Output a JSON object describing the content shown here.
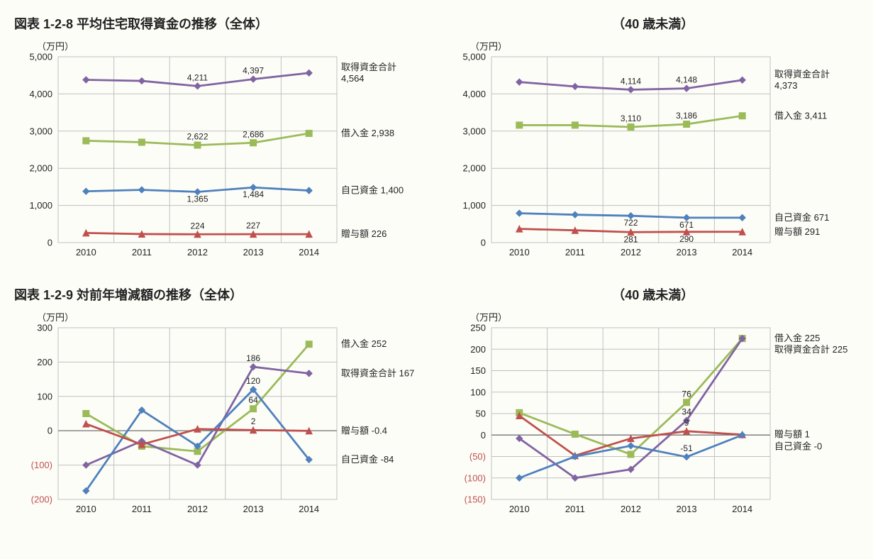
{
  "colors": {
    "purple": "#8064a2",
    "green": "#9bbb59",
    "blue": "#4f81bd",
    "red": "#c0504d",
    "grid": "#bfbfbf",
    "axis": "#808080",
    "bg": "#fdfdf8",
    "text": "#222222"
  },
  "line_width": 2.8,
  "marker_size": 4.5,
  "font": {
    "title_pt": 18,
    "axis_pt": 13,
    "tick_pt": 13,
    "label_pt": 13,
    "data_pt": 12
  },
  "chart_128_all": {
    "type": "line",
    "title": "図表 1-2-8  平均住宅取得資金の推移（全体）",
    "ylabel": "（万円）",
    "categories": [
      "2010",
      "2011",
      "2012",
      "2013",
      "2014"
    ],
    "ylim": [
      0,
      5000
    ],
    "ytick_step": 1000,
    "series": [
      {
        "key": "total",
        "name": "取得資金合計",
        "color": "#8064a2",
        "marker": "diamond",
        "values": [
          4380,
          4350,
          4211,
          4397,
          4564
        ],
        "dl": {
          "2": "4,211",
          "3": "4,397"
        },
        "end_label": "取得資金合計 4,564"
      },
      {
        "key": "loan",
        "name": "借入金",
        "color": "#9bbb59",
        "marker": "square",
        "values": [
          2740,
          2700,
          2622,
          2686,
          2938
        ],
        "dl": {
          "2": "2,622",
          "3": "2,686"
        },
        "end_label": "借入金 2,938"
      },
      {
        "key": "own",
        "name": "自己資金",
        "color": "#4f81bd",
        "marker": "diamond",
        "values": [
          1380,
          1420,
          1365,
          1484,
          1400
        ],
        "dl": {
          "2": "1,365",
          "3": "1,484"
        },
        "end_label": "自己資金 1,400"
      },
      {
        "key": "gift",
        "name": "贈与額",
        "color": "#c0504d",
        "marker": "triangle",
        "values": [
          260,
          230,
          224,
          227,
          226
        ],
        "dl": {
          "2": "224",
          "3": "227"
        },
        "end_label": "贈与額 226"
      }
    ]
  },
  "chart_128_u40": {
    "type": "line",
    "title": "（40 歳未満）",
    "ylabel": "（万円）",
    "categories": [
      "2010",
      "2011",
      "2012",
      "2013",
      "2014"
    ],
    "ylim": [
      0,
      5000
    ],
    "ytick_step": 1000,
    "series": [
      {
        "key": "total",
        "name": "取得資金合計",
        "color": "#8064a2",
        "marker": "diamond",
        "values": [
          4320,
          4200,
          4114,
          4148,
          4373
        ],
        "dl": {
          "2": "4,114",
          "3": "4,148"
        },
        "end_label": "取得資金合計 4,373"
      },
      {
        "key": "loan",
        "name": "借入金",
        "color": "#9bbb59",
        "marker": "square",
        "values": [
          3160,
          3160,
          3110,
          3186,
          3411
        ],
        "dl": {
          "2": "3,110",
          "3": "3,186"
        },
        "end_label": "借入金 3,411"
      },
      {
        "key": "own",
        "name": "自己資金",
        "color": "#4f81bd",
        "marker": "diamond",
        "values": [
          790,
          750,
          722,
          671,
          671
        ],
        "dl": {
          "2": "722",
          "3": "671"
        },
        "end_label": "自己資金 671"
      },
      {
        "key": "gift",
        "name": "贈与額",
        "color": "#c0504d",
        "marker": "triangle",
        "values": [
          370,
          330,
          281,
          290,
          291
        ],
        "dl": {
          "2": "281",
          "3": "290"
        },
        "end_label": "贈与額 291"
      }
    ]
  },
  "chart_129_all": {
    "type": "line",
    "title": "図表 1-2-9  対前年増減額の推移（全体）",
    "ylabel": "（万円）",
    "categories": [
      "2010",
      "2011",
      "2012",
      "2013",
      "2014"
    ],
    "ylim": [
      -200,
      300
    ],
    "ytick_step": 100,
    "yticks": [
      -200,
      -100,
      0,
      100,
      200,
      300
    ],
    "series": [
      {
        "key": "loan",
        "name": "借入金",
        "color": "#9bbb59",
        "marker": "square",
        "values": [
          50,
          -45,
          -60,
          64,
          252
        ],
        "dl": {
          "3": "64"
        },
        "end_label": "借入金 252"
      },
      {
        "key": "total",
        "name": "取得資金合計",
        "color": "#8064a2",
        "marker": "diamond",
        "values": [
          -100,
          -30,
          -100,
          186,
          167
        ],
        "dl": {
          "3": "186"
        },
        "end_label": "取得資金合計 167"
      },
      {
        "key": "own",
        "name": "自己資金",
        "color": "#4f81bd",
        "marker": "diamond",
        "values": [
          -175,
          60,
          -45,
          120,
          -84
        ],
        "dl": {
          "3": "120"
        },
        "end_label": "自己資金 -84",
        "label_color": "#c0504d"
      },
      {
        "key": "gift",
        "name": "贈与額",
        "color": "#c0504d",
        "marker": "triangle",
        "values": [
          20,
          -40,
          5,
          2,
          -0.4
        ],
        "dl": {
          "3": "2"
        },
        "end_label": "贈与額 -0.4",
        "label_color": "#c0504d"
      }
    ]
  },
  "chart_129_u40": {
    "type": "line",
    "title": "（40 歳未満）",
    "ylabel": "（万円）",
    "categories": [
      "2010",
      "2011",
      "2012",
      "2013",
      "2014"
    ],
    "ylim": [
      -150,
      250
    ],
    "ytick_step": 50,
    "yticks": [
      -150,
      -100,
      -50,
      0,
      50,
      100,
      150,
      200,
      250
    ],
    "series": [
      {
        "key": "loan",
        "name": "借入金",
        "color": "#9bbb59",
        "marker": "square",
        "values": [
          52,
          2,
          -45,
          76,
          225
        ],
        "dl": {
          "3": "76"
        },
        "end_label": "借入金 225"
      },
      {
        "key": "total",
        "name": "取得資金合計",
        "color": "#8064a2",
        "marker": "diamond",
        "values": [
          -8,
          -100,
          -80,
          34,
          225
        ],
        "dl": {
          "3": "34"
        },
        "end_label": "取得資金合計 225"
      },
      {
        "key": "gift",
        "name": "贈与額",
        "color": "#c0504d",
        "marker": "triangle",
        "values": [
          45,
          -48,
          -8,
          9,
          1
        ],
        "dl": {
          "3": "9"
        },
        "end_label": "贈与額 1"
      },
      {
        "key": "own",
        "name": "自己資金",
        "color": "#4f81bd",
        "marker": "diamond",
        "values": [
          -100,
          -50,
          -25,
          -51,
          0
        ],
        "dl": {
          "3": "-51"
        },
        "end_label": "自己資金 -0",
        "label_color": "#c0504d"
      }
    ]
  }
}
